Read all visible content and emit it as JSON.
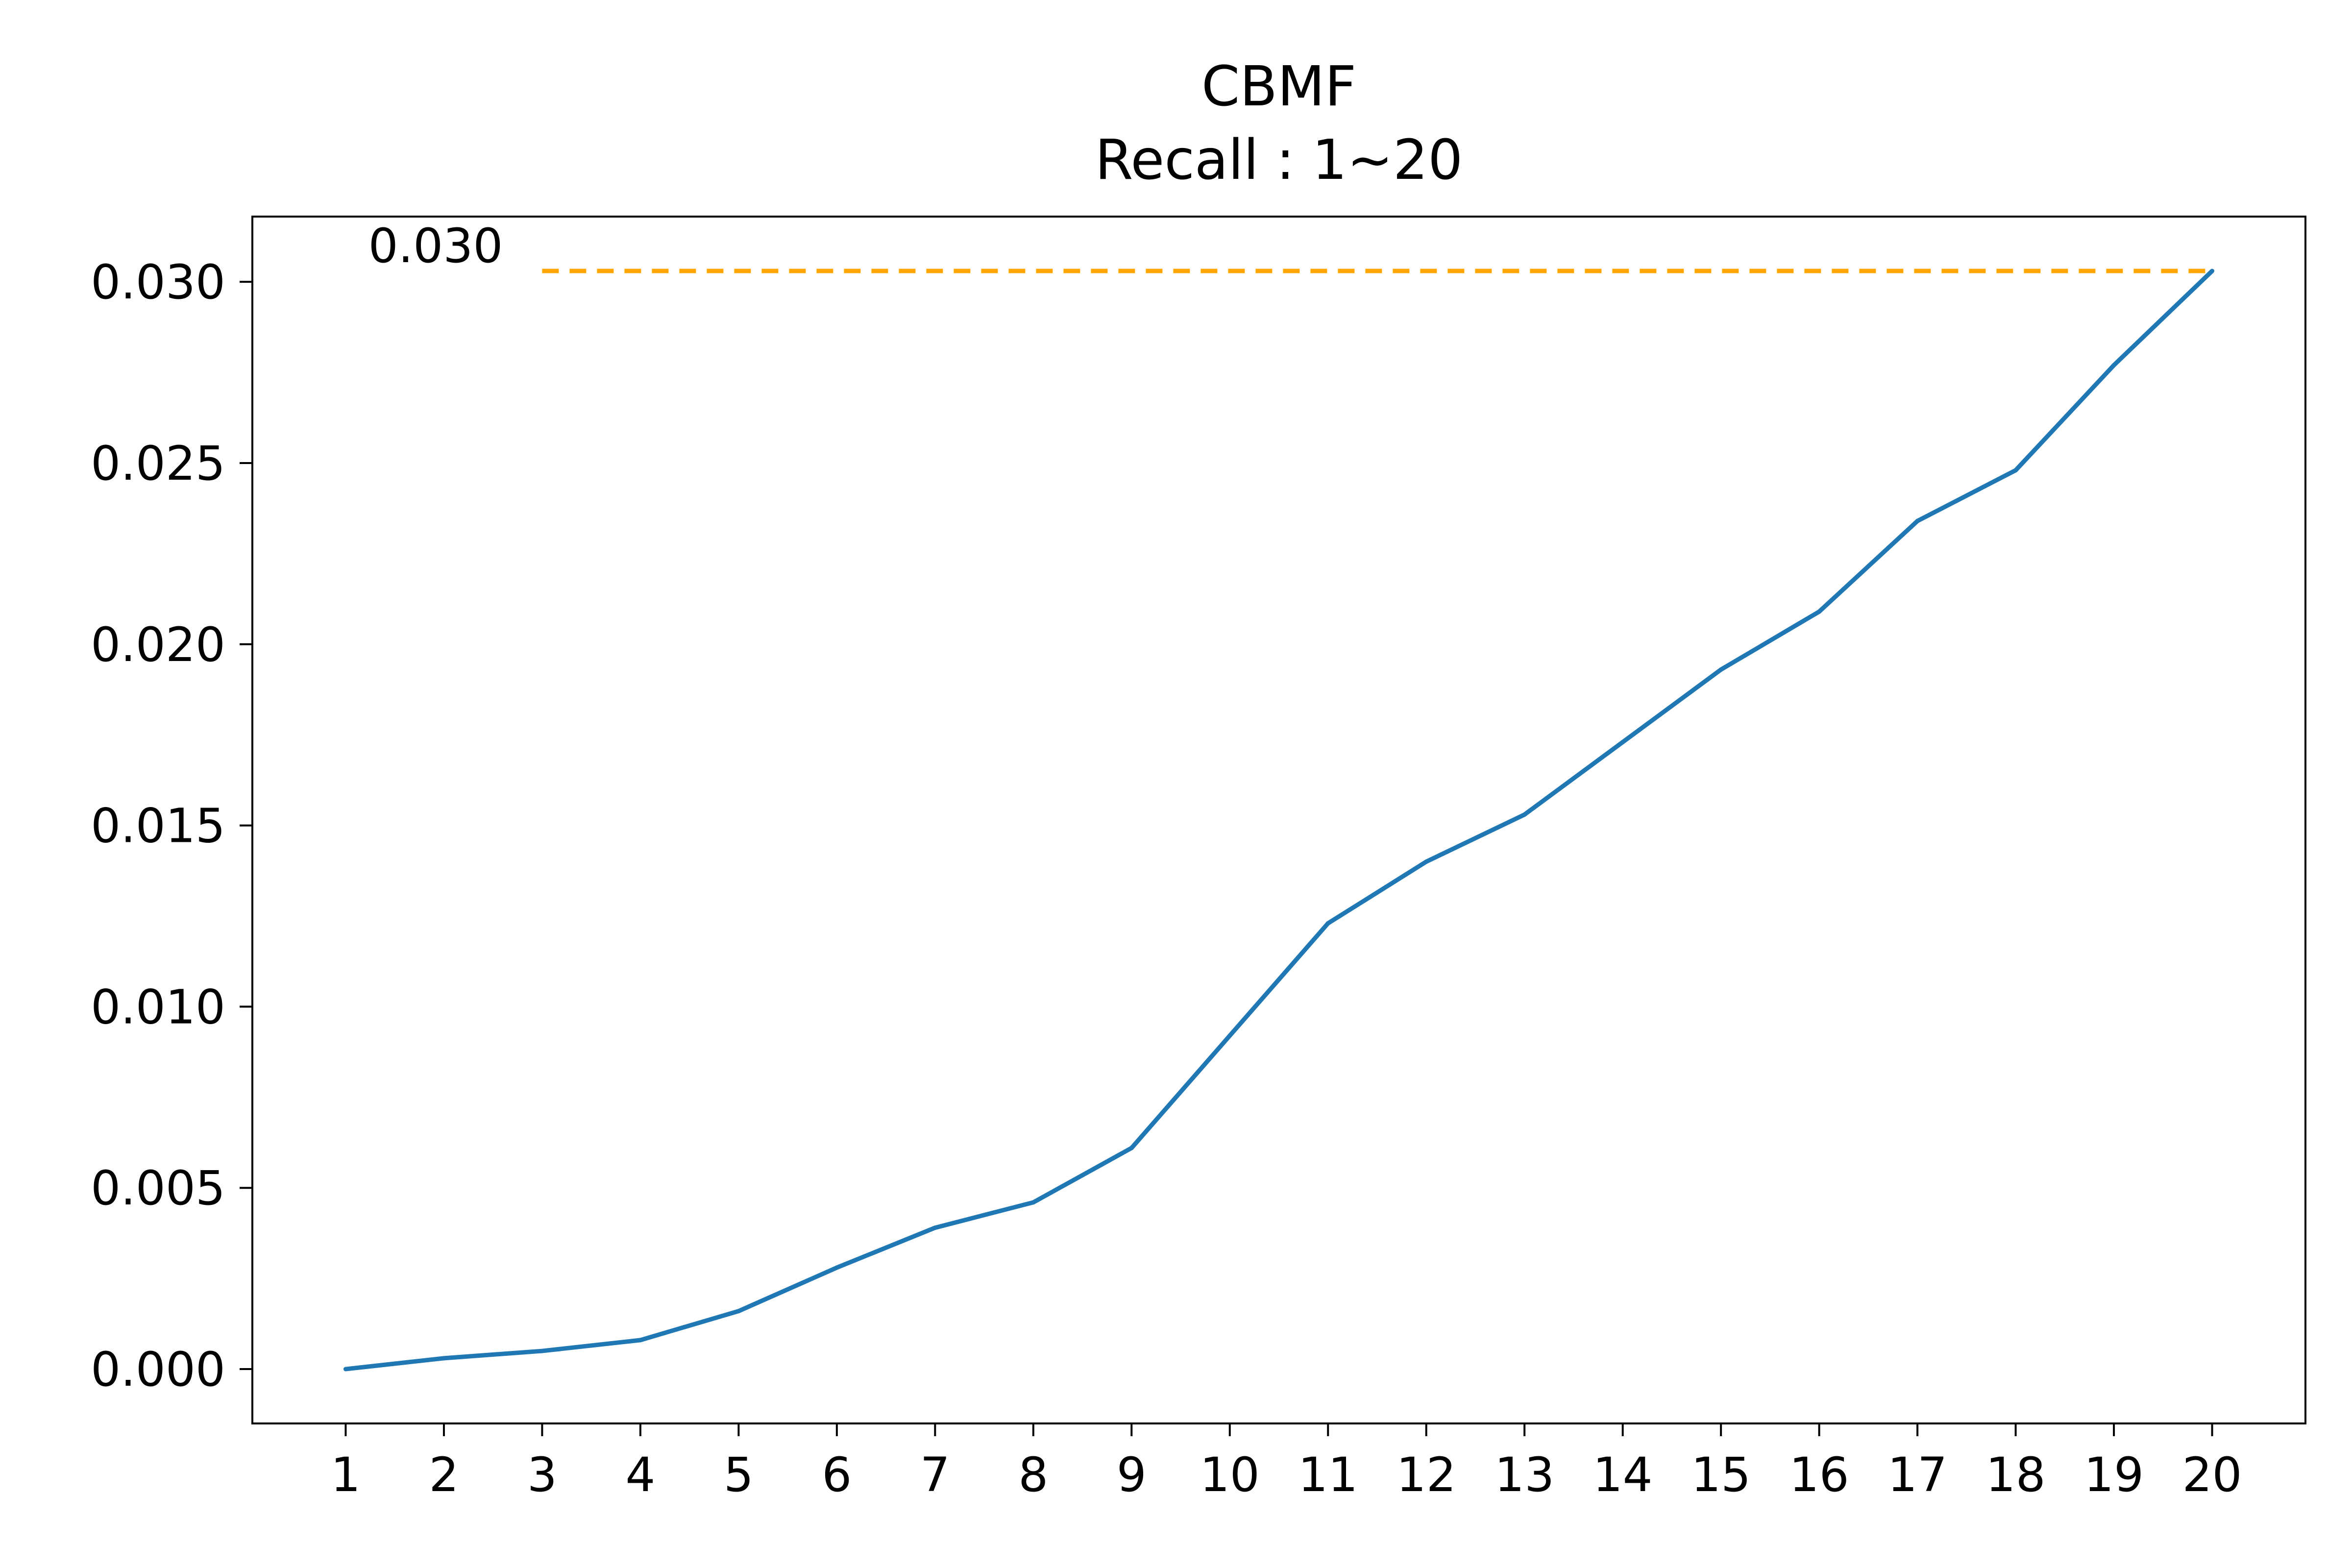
{
  "chart_data": {
    "type": "line",
    "title": "CBMF",
    "subtitle": "Recall : 1~20",
    "xlabel": "",
    "ylabel": "",
    "x": [
      1,
      2,
      3,
      4,
      5,
      6,
      7,
      8,
      9,
      10,
      11,
      12,
      13,
      14,
      15,
      16,
      17,
      18,
      19,
      20
    ],
    "x_tick_labels": [
      "1",
      "2",
      "3",
      "4",
      "5",
      "6",
      "7",
      "8",
      "9",
      "10",
      "11",
      "12",
      "13",
      "14",
      "15",
      "16",
      "17",
      "18",
      "19",
      "20"
    ],
    "series": [
      {
        "color": "#1f77b4",
        "values": [
          0.0,
          0.0003,
          0.0005,
          0.0008,
          0.0016,
          0.0028,
          0.0039,
          0.0046,
          0.0061,
          0.0092,
          0.0123,
          0.014,
          0.0153,
          0.0173,
          0.0193,
          0.0209,
          0.0234,
          0.0248,
          0.0277,
          0.0303
        ]
      }
    ],
    "reference_line": {
      "value": 0.0303,
      "x_start": 3,
      "x_end": 20,
      "style": "dashed",
      "color": "#ffa500",
      "label": "0.030"
    },
    "xlim": [
      0.05,
      20.95
    ],
    "ylim": [
      -0.0015,
      0.0318
    ],
    "y_ticks": [
      0.0,
      0.005,
      0.01,
      0.015,
      0.02,
      0.025,
      0.03
    ],
    "y_tick_labels": [
      "0.000",
      "0.005",
      "0.010",
      "0.015",
      "0.020",
      "0.025",
      "0.030"
    ],
    "grid": false,
    "legend": false
  }
}
